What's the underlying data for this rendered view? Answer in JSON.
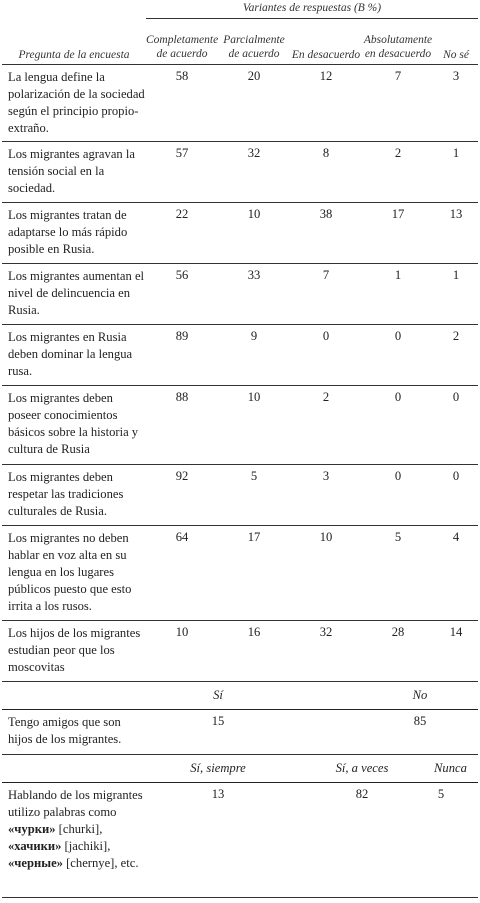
{
  "header": {
    "group_title": "Variantes de respuestas (В %)",
    "question_col": "Pregunta de la encuesta",
    "columns": [
      "Completamente de acuerdo",
      "Parcialmente de acuerdo",
      "En desacuerdo",
      "Absolutamente en desacuerdo",
      "No sé"
    ]
  },
  "rows": [
    {
      "q": "La lengua define la polarización de la sociedad según el principio propio-extraño.",
      "v": [
        "58",
        "20",
        "12",
        "7",
        "3"
      ]
    },
    {
      "q": "Los migrantes agravan la tensión social en la sociedad.",
      "v": [
        "57",
        "32",
        "8",
        "2",
        "1"
      ]
    },
    {
      "q": "Los migrantes tratan de adaptarse lo más rápido posible en Rusia.",
      "v": [
        "22",
        "10",
        "38",
        "17",
        "13"
      ]
    },
    {
      "q": "Los migrantes aumentan el nivel de delincuencia en Rusia.",
      "v": [
        "56",
        "33",
        "7",
        "1",
        "1"
      ]
    },
    {
      "q": "Los migrantes en Rusia deben dominar la lengua rusa.",
      "v": [
        "89",
        "9",
        "0",
        "0",
        "2"
      ]
    },
    {
      "q": "Los migrantes deben poseer conocimientos básicos sobre la historia y cultura de Rusia",
      "v": [
        "88",
        "10",
        "2",
        "0",
        "0"
      ]
    },
    {
      "q": "Los migrantes deben respetar las tradiciones culturales de Rusia.",
      "v": [
        "92",
        "5",
        "3",
        "0",
        "0"
      ]
    },
    {
      "q": "Los migrantes no deben hablar en voz alta en su lengua en los lugares públicos puesto que esto irrita a los rusos.",
      "v": [
        "64",
        "17",
        "10",
        "5",
        "4"
      ]
    },
    {
      "q": "Los hijos de los migrantes estudian peor que los moscovitas",
      "v": [
        "10",
        "16",
        "32",
        "28",
        "14"
      ]
    }
  ],
  "friends": {
    "labels": [
      "Sí",
      "No"
    ],
    "q": "Tengo amigos que son hijos de los migrantes.",
    "v": [
      "15",
      "85"
    ]
  },
  "words": {
    "labels": [
      "Sí, siempre",
      "Sí, a veces",
      "Nunca"
    ],
    "q_start": "Hablando de los migrantes utilizo palabras como ",
    "w1": "«чурки»",
    "t1": " [churki], ",
    "w2": "«хачики»",
    "t2": " [jachiki], ",
    "w3": "«черные»",
    "t3": " [chernye], etc.",
    "v": [
      "13",
      "82",
      "5"
    ]
  }
}
